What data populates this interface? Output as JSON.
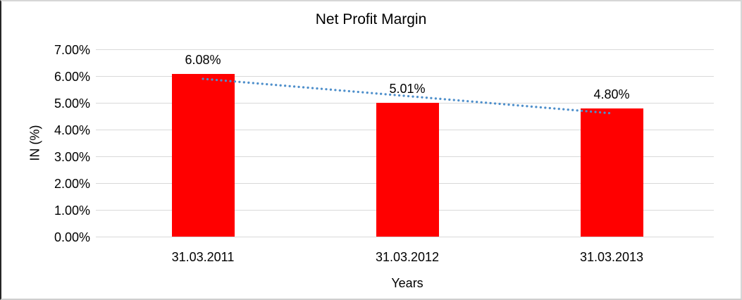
{
  "chart_data": {
    "type": "bar",
    "title": "Net Profit Margin",
    "xlabel": "Years",
    "ylabel": "IN (%)",
    "categories": [
      "31.03.2011",
      "31.03.2012",
      "31.03.2013"
    ],
    "values": [
      6.08,
      5.01,
      4.8
    ],
    "data_labels": [
      "6.08%",
      "5.01%",
      "4.80%"
    ],
    "ylim": [
      0,
      7
    ],
    "ytick_step": 1,
    "ytick_labels": [
      "0.00%",
      "1.00%",
      "2.00%",
      "3.00%",
      "4.00%",
      "5.00%",
      "6.00%",
      "7.00%"
    ],
    "grid": true,
    "legend": false,
    "bar_color": "#ff0000",
    "gridline_color": "#d9d9d9",
    "text_color": "#000000",
    "trendline": {
      "type": "linear",
      "style": "dotted",
      "color": "#4e8fcb",
      "start_pct": 5.91,
      "end_pct": 4.62
    }
  },
  "frame": {
    "border_color": "#d6d6d6",
    "left_edge_color": "#262626",
    "background": "#ffffff"
  }
}
